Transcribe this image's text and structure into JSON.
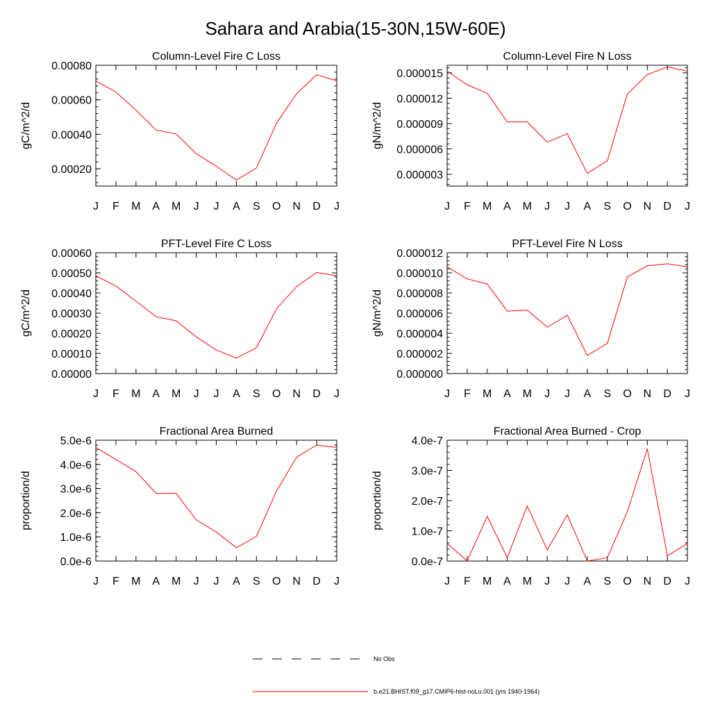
{
  "title": "Sahara and Arabia(15-30N,15W-60E)",
  "months": [
    "J",
    "F",
    "M",
    "A",
    "M",
    "J",
    "J",
    "A",
    "S",
    "O",
    "N",
    "D",
    "J"
  ],
  "legend": [
    {
      "label": "No Obs",
      "color": "#000000",
      "dashed": true
    },
    {
      "label": "b.e21.BHIST.f09_g17.CMIP6-hist-noLu.001 (yrs 1940-1964)",
      "color": "#ff0000",
      "dashed": false
    }
  ],
  "chart_data": [
    {
      "type": "line",
      "title": "Column-Level Fire C Loss",
      "ylabel": "gC/m^2/d",
      "ylim": [
        0.0001,
        0.0008
      ],
      "yticks": [
        0.0002,
        0.0004,
        0.0006,
        0.0008
      ],
      "yticklabels": [
        "0.00020",
        "0.00040",
        "0.00060",
        "0.00080"
      ],
      "series": [
        {
          "color": "#ff0000",
          "values": [
            0.00071,
            0.000645,
            0.00054,
            0.000425,
            0.000402,
            0.000288,
            0.000215,
            0.000135,
            0.000205,
            0.000465,
            0.000635,
            0.000745,
            0.00071
          ]
        }
      ]
    },
    {
      "type": "line",
      "title": "Column-Level Fire N Loss",
      "ylabel": "gN/m^2/d",
      "ylim": [
        1.6e-06,
        1.59e-05
      ],
      "yticks": [
        3e-06,
        6e-06,
        9e-06,
        1.2e-05,
        1.5e-05
      ],
      "yticklabels": [
        "0.000003",
        "0.000006",
        "0.000009",
        "0.000012",
        "0.000015"
      ],
      "series": [
        {
          "color": "#ff0000",
          "values": [
            1.52e-05,
            1.36e-05,
            1.26e-05,
            9.2e-06,
            9.2e-06,
            6.8e-06,
            7.8e-06,
            3.1e-06,
            4.6e-06,
            1.25e-05,
            1.48e-05,
            1.57e-05,
            1.52e-05
          ]
        }
      ]
    },
    {
      "type": "line",
      "title": "PFT-Level Fire C Loss",
      "ylabel": "gC/m^2/d",
      "ylim": [
        0,
        0.0006
      ],
      "yticks": [
        0,
        0.0001,
        0.0002,
        0.0003,
        0.0004,
        0.0005,
        0.0006
      ],
      "yticklabels": [
        "0.00000",
        "0.00010",
        "0.00020",
        "0.00030",
        "0.00040",
        "0.00050",
        "0.00060"
      ],
      "series": [
        {
          "color": "#ff0000",
          "values": [
            0.000485,
            0.000435,
            0.00036,
            0.000282,
            0.000262,
            0.000182,
            0.000117,
            7.7e-05,
            0.000128,
            0.000322,
            0.000432,
            0.000502,
            0.000485
          ]
        }
      ]
    },
    {
      "type": "line",
      "title": "PFT-Level Fire N Loss",
      "ylabel": "gN/m^2/d",
      "ylim": [
        0,
        1.2e-05
      ],
      "yticks": [
        0,
        2e-06,
        4e-06,
        6e-06,
        8e-06,
        1e-05,
        1.2e-05
      ],
      "yticklabels": [
        "0.000000",
        "0.000002",
        "0.000004",
        "0.000006",
        "0.000008",
        "0.000010",
        "0.000012"
      ],
      "series": [
        {
          "color": "#ff0000",
          "values": [
            1.06e-05,
            9.4e-06,
            8.9e-06,
            6.2e-06,
            6.3e-06,
            4.6e-06,
            5.8e-06,
            1.8e-06,
            3e-06,
            9.6e-06,
            1.07e-05,
            1.09e-05,
            1.06e-05
          ]
        }
      ]
    },
    {
      "type": "line",
      "title": "Fractional Area Burned",
      "ylabel": "proportion/d",
      "ylim": [
        0,
        5e-06
      ],
      "yticks": [
        0,
        1e-06,
        2e-06,
        3e-06,
        4e-06,
        5e-06
      ],
      "yticklabels": [
        "0.0e-6",
        "1.0e-6",
        "2.0e-6",
        "3.0e-6",
        "4.0e-6",
        "5.0e-6"
      ],
      "series": [
        {
          "color": "#ff0000",
          "values": [
            4.7e-06,
            4.2e-06,
            3.7e-06,
            2.8e-06,
            2.8e-06,
            1.7e-06,
            1.2e-06,
            5.5e-07,
            1.02e-06,
            2.9e-06,
            4.3e-06,
            4.8e-06,
            4.7e-06
          ]
        }
      ]
    },
    {
      "type": "line",
      "title": "Fractional Area Burned - Crop",
      "ylabel": "proportion/d",
      "ylim": [
        0,
        4e-07
      ],
      "yticks": [
        0,
        1e-07,
        2e-07,
        3e-07,
        4e-07
      ],
      "yticklabels": [
        "0.0e-7",
        "1.0e-7",
        "2.0e-7",
        "3.0e-7",
        "4.0e-7"
      ],
      "series": [
        {
          "color": "#ff0000",
          "values": [
            5.8e-08,
            5e-10,
            1.48e-07,
            1.1e-08,
            1.82e-07,
            3.7e-08,
            1.53e-07,
            0.0,
            1.1e-08,
            1.63e-07,
            3.72e-07,
            1.7e-08,
            5.8e-08
          ]
        }
      ]
    }
  ]
}
